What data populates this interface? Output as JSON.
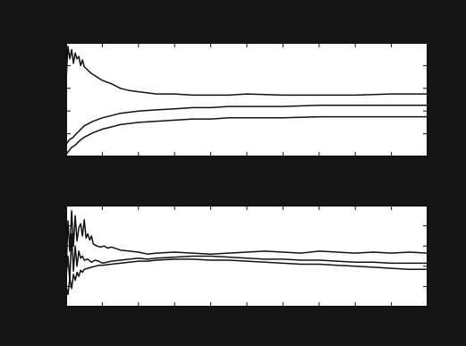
{
  "colors": {
    "frame": "#151515",
    "plot_background": "#ffffff",
    "line": "#111111",
    "axis": "#111111"
  },
  "chart_data": [
    {
      "type": "line",
      "title": "",
      "xlabel": "",
      "ylabel": "",
      "xlim": [
        0,
        400
      ],
      "ylim": [
        0,
        1
      ],
      "grid": false,
      "legend": "none",
      "series": [
        {
          "x": [
            0,
            2,
            4,
            6,
            8,
            10,
            12,
            14,
            16,
            18,
            20,
            24,
            28,
            32,
            36,
            40,
            50,
            60,
            70,
            80,
            100,
            120,
            140,
            160,
            180,
            200,
            240,
            280,
            320,
            360,
            400
          ],
          "y": [
            0.68,
            0.97,
            0.86,
            0.94,
            0.82,
            0.91,
            0.86,
            0.88,
            0.8,
            0.85,
            0.79,
            0.76,
            0.73,
            0.71,
            0.69,
            0.67,
            0.64,
            0.6,
            0.58,
            0.57,
            0.55,
            0.55,
            0.54,
            0.54,
            0.54,
            0.55,
            0.54,
            0.54,
            0.54,
            0.55,
            0.55
          ]
        },
        {
          "x": [
            0,
            2,
            4,
            6,
            8,
            10,
            15,
            20,
            30,
            40,
            50,
            60,
            80,
            100,
            120,
            140,
            160,
            180,
            200,
            240,
            280,
            320,
            360,
            400
          ],
          "y": [
            0.11,
            0.13,
            0.15,
            0.16,
            0.17,
            0.19,
            0.23,
            0.27,
            0.31,
            0.34,
            0.36,
            0.38,
            0.4,
            0.41,
            0.42,
            0.43,
            0.43,
            0.44,
            0.44,
            0.44,
            0.45,
            0.45,
            0.45,
            0.45
          ]
        },
        {
          "x": [
            0,
            2,
            4,
            6,
            8,
            10,
            15,
            20,
            30,
            40,
            50,
            60,
            80,
            100,
            120,
            140,
            160,
            180,
            200,
            240,
            280,
            320,
            360,
            400
          ],
          "y": [
            0.02,
            0.04,
            0.06,
            0.08,
            0.09,
            0.1,
            0.14,
            0.17,
            0.21,
            0.24,
            0.26,
            0.28,
            0.3,
            0.31,
            0.32,
            0.33,
            0.33,
            0.34,
            0.34,
            0.34,
            0.35,
            0.35,
            0.35,
            0.35
          ]
        }
      ]
    },
    {
      "type": "line",
      "title": "",
      "xlabel": "",
      "ylabel": "",
      "xlim": [
        0,
        400
      ],
      "ylim": [
        0,
        1
      ],
      "grid": false,
      "legend": "none",
      "series": [
        {
          "x": [
            0,
            2,
            4,
            6,
            8,
            10,
            12,
            14,
            16,
            18,
            20,
            22,
            24,
            26,
            28,
            30,
            34,
            38,
            42,
            46,
            50,
            60,
            70,
            80,
            90,
            100,
            120,
            140,
            160,
            180,
            200,
            220,
            240,
            260,
            280,
            300,
            320,
            340,
            360,
            380,
            400
          ],
          "y": [
            0.35,
            0.85,
            0.55,
            0.95,
            0.6,
            0.9,
            0.65,
            0.78,
            0.82,
            0.7,
            0.86,
            0.68,
            0.72,
            0.66,
            0.7,
            0.62,
            0.6,
            0.59,
            0.6,
            0.58,
            0.59,
            0.56,
            0.55,
            0.54,
            0.52,
            0.53,
            0.54,
            0.53,
            0.52,
            0.53,
            0.54,
            0.55,
            0.54,
            0.53,
            0.55,
            0.54,
            0.53,
            0.54,
            0.53,
            0.54,
            0.53
          ]
        },
        {
          "x": [
            0,
            2,
            4,
            6,
            8,
            10,
            12,
            14,
            16,
            18,
            20,
            24,
            28,
            32,
            36,
            40,
            50,
            60,
            70,
            80,
            90,
            100,
            120,
            140,
            160,
            180,
            200,
            220,
            240,
            260,
            280,
            300,
            320,
            340,
            360,
            380,
            400
          ],
          "y": [
            0.3,
            0.5,
            0.25,
            0.72,
            0.35,
            0.6,
            0.4,
            0.55,
            0.48,
            0.5,
            0.46,
            0.47,
            0.44,
            0.46,
            0.45,
            0.43,
            0.45,
            0.46,
            0.47,
            0.48,
            0.47,
            0.48,
            0.49,
            0.5,
            0.5,
            0.49,
            0.48,
            0.47,
            0.47,
            0.46,
            0.46,
            0.45,
            0.44,
            0.44,
            0.43,
            0.43,
            0.43
          ]
        },
        {
          "x": [
            0,
            2,
            4,
            6,
            8,
            10,
            12,
            14,
            16,
            18,
            20,
            24,
            28,
            32,
            36,
            40,
            50,
            60,
            70,
            80,
            90,
            100,
            120,
            140,
            160,
            180,
            200,
            220,
            240,
            260,
            280,
            300,
            320,
            340,
            360,
            380,
            400
          ],
          "y": [
            0.2,
            0.12,
            0.28,
            0.18,
            0.32,
            0.26,
            0.34,
            0.3,
            0.36,
            0.34,
            0.37,
            0.38,
            0.39,
            0.4,
            0.41,
            0.41,
            0.42,
            0.43,
            0.44,
            0.45,
            0.45,
            0.46,
            0.47,
            0.47,
            0.46,
            0.46,
            0.45,
            0.44,
            0.43,
            0.42,
            0.42,
            0.41,
            0.4,
            0.39,
            0.38,
            0.37,
            0.37
          ]
        }
      ]
    }
  ]
}
